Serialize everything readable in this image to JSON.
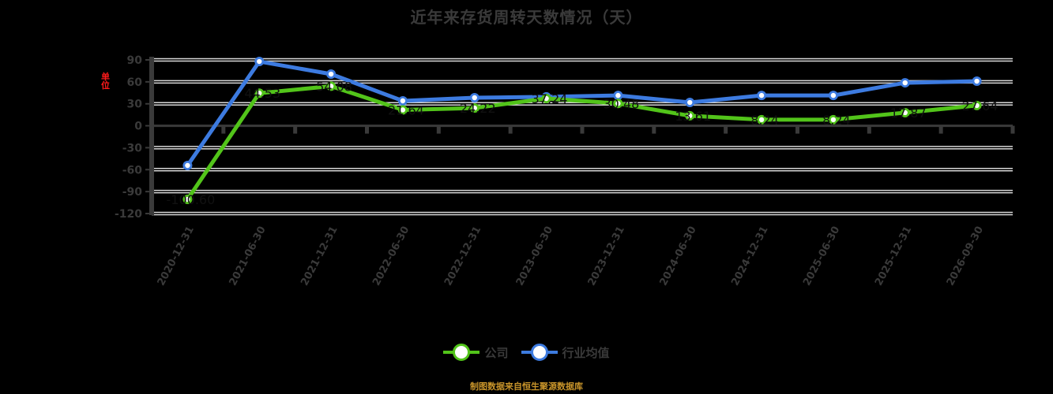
{
  "chart_data": {
    "type": "line",
    "title": "近年来存货周转天数情况（天）",
    "unit_label": "单位",
    "xlabel": "",
    "ylabel": "天",
    "ylim": [
      -120,
      90
    ],
    "yticks": [
      90,
      60,
      30,
      0,
      -30,
      -60,
      -90,
      -120
    ],
    "grid": true,
    "legend_position": "bottom",
    "categories": [
      "2020-12-31",
      "2021-06-30",
      "2021-12-31",
      "2022-06-30",
      "2022-12-31",
      "2023-06-30",
      "2023-12-31",
      "2024-06-30",
      "2024-12-31",
      "2025-06-30",
      "2025-12-31",
      "2026-09-30"
    ],
    "series": [
      {
        "name": "公司",
        "color": "#52c41a",
        "values": [
          -100.6,
          44.53,
          54.08,
          21.64,
          24.22,
          37.24,
          30.48,
          13.61,
          8.24,
          8.24,
          17.87,
          27.64
        ],
        "labels": [
          "-100.60",
          "44.53",
          "54.08",
          "21.64",
          "24.22",
          "37.24",
          "30.48",
          "13.61",
          "8.24",
          "8.24",
          "17.87",
          "27.64"
        ]
      },
      {
        "name": "行业均值",
        "color": "#3d7be0",
        "values": [
          -54.3,
          87.8,
          70.6,
          34.0,
          38.3,
          39.5,
          41.4,
          31.8,
          41.4,
          41.4,
          58.7,
          60.9
        ]
      }
    ]
  },
  "title": "近年来存货周转天数情况（天）",
  "unit_label": "单位",
  "legend": [
    {
      "label": "公司",
      "color": "#52c41a"
    },
    {
      "label": "行业均值",
      "color": "#3d7be0"
    }
  ],
  "footer": "制图数据来自恒生聚源数据库"
}
